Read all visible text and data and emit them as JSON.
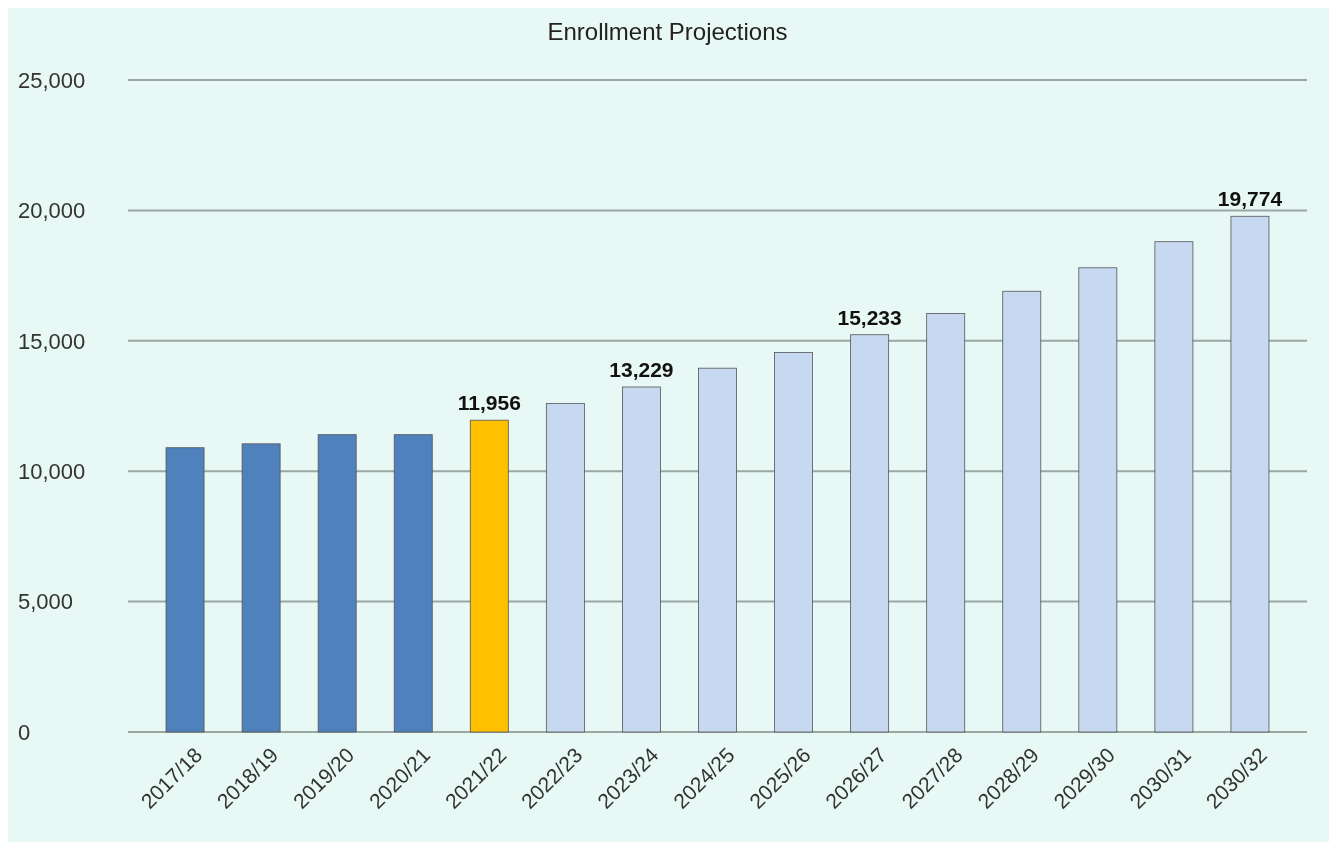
{
  "chart_data": {
    "type": "bar",
    "title": "Enrollment Projections",
    "categories": [
      "2017/18",
      "2018/19",
      "2019/20",
      "2020/21",
      "2021/22",
      "2022/23",
      "2023/24",
      "2024/25",
      "2025/26",
      "2026/27",
      "2027/28",
      "2028/29",
      "2029/30",
      "2030/31",
      "2030/32"
    ],
    "values": [
      10900,
      11050,
      11400,
      11400,
      11956,
      12600,
      13229,
      13950,
      14550,
      15233,
      16050,
      16900,
      17800,
      18800,
      19774
    ],
    "colors": [
      "#4f81bd",
      "#4f81bd",
      "#4f81bd",
      "#4f81bd",
      "#ffc000",
      "#c6d9f1",
      "#c6d9f1",
      "#c6d9f1",
      "#c6d9f1",
      "#c6d9f1",
      "#c6d9f1",
      "#c6d9f1",
      "#c6d9f1",
      "#c6d9f1",
      "#c6d9f1"
    ],
    "value_labels": [
      null,
      null,
      null,
      null,
      "11,956",
      null,
      "13,229",
      null,
      null,
      "15,233",
      null,
      null,
      null,
      null,
      "19,774"
    ],
    "ylim": [
      0,
      25000
    ],
    "yticks": [
      {
        "value": 0,
        "label": "0"
      },
      {
        "value": 5000,
        "label": "5,000"
      },
      {
        "value": 10000,
        "label": "10,000"
      },
      {
        "value": 15000,
        "label": "15,000"
      },
      {
        "value": 20000,
        "label": "20,000"
      },
      {
        "value": 25000,
        "label": "25,000"
      }
    ],
    "grid": "y"
  }
}
